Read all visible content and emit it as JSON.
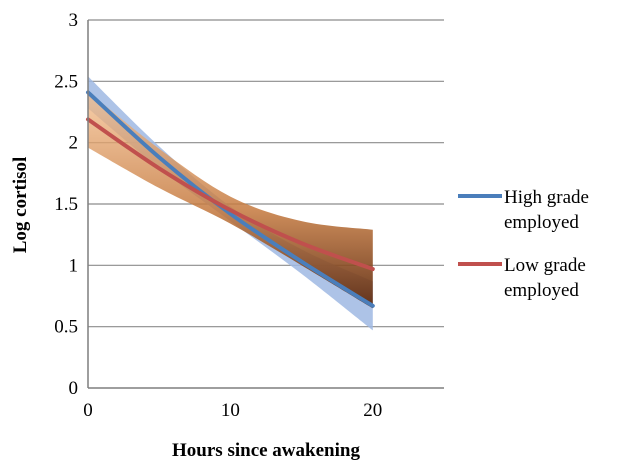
{
  "chart_data": {
    "type": "line",
    "title": "",
    "xlabel": "Hours since awakening",
    "ylabel": "Log cortisol",
    "xlim": [
      0,
      25
    ],
    "ylim": [
      0,
      3
    ],
    "x_ticks": [
      "0",
      "10",
      "20"
    ],
    "y_ticks": [
      "0",
      "0.5",
      "1",
      "1.5",
      "2",
      "2.5",
      "3"
    ],
    "grid": "horizontal",
    "legend_position": "right",
    "series": [
      {
        "name_lines": [
          "High grade",
          "employed"
        ],
        "color": "#4a7ebb",
        "x": [
          0,
          5,
          10,
          15,
          20
        ],
        "y": [
          2.41,
          1.88,
          1.42,
          1.03,
          0.67
        ],
        "band_lower": [
          2.28,
          1.79,
          1.36,
          0.93,
          0.47
        ],
        "band_upper": [
          2.54,
          1.97,
          1.48,
          1.13,
          0.87
        ],
        "band_color": "#9fb8e3"
      },
      {
        "name_lines": [
          "Low grade",
          "employed"
        ],
        "color": "#c0504d",
        "x": [
          0,
          5,
          10,
          15,
          20
        ],
        "y": [
          2.19,
          1.79,
          1.45,
          1.18,
          0.97
        ],
        "band_lower": [
          1.96,
          1.63,
          1.34,
          1.0,
          0.65
        ],
        "band_upper": [
          2.42,
          1.95,
          1.56,
          1.36,
          1.29
        ],
        "band_color": "#e8a06a",
        "band_dark": "#5c2a10"
      }
    ]
  }
}
